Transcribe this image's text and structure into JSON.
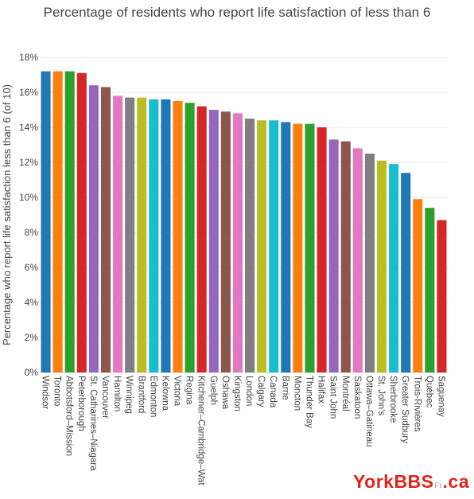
{
  "chart_data": {
    "type": "bar",
    "title": "Percentage of residents who report life satisfaction of less than 6",
    "ylabel": "Percentage who report life satisfaction less than 6 (of 10)",
    "xlabel": "",
    "ylim": [
      0,
      18
    ],
    "yticks": [
      "0%",
      "2%",
      "4%",
      "6%",
      "8%",
      "10%",
      "12%",
      "14%",
      "16%",
      "18%"
    ],
    "grid": true,
    "categories": [
      "Windsor",
      "Toronto",
      "Abbotsford–Mission",
      "Peterborough",
      "St. Catharines–Niagara",
      "Vancouver",
      "Hamilton",
      "Winnipeg",
      "Brantford",
      "Edmonton",
      "Kelowna",
      "Victoria",
      "Regina",
      "Kitchener–Cambridge–Wat",
      "Guelph",
      "Oshawa",
      "Kingston",
      "London",
      "Calgary",
      "Canada",
      "Barrie",
      "Moncton",
      "Thunder Bay",
      "Halifax",
      "Saint John",
      "Montréal",
      "Saskatoon",
      "Ottawa–Gatineau",
      "St. John's",
      "Sherbrooke",
      "Greater Sudbury",
      "Trois-Rivières",
      "Québec",
      "Saguenay"
    ],
    "values": [
      17.2,
      17.2,
      17.2,
      17.1,
      16.4,
      16.3,
      15.8,
      15.7,
      15.7,
      15.6,
      15.6,
      15.5,
      15.4,
      15.2,
      15.0,
      14.9,
      14.8,
      14.5,
      14.4,
      14.4,
      14.3,
      14.2,
      14.2,
      14.0,
      13.3,
      13.2,
      12.8,
      12.5,
      12.1,
      11.9,
      11.4,
      9.9,
      9.4,
      8.7
    ],
    "colors": [
      "#1f77b4",
      "#ff7f0e",
      "#2ca02c",
      "#d62728",
      "#9467bd",
      "#8c564b",
      "#e377c2",
      "#7f7f7f",
      "#bcbd22",
      "#17becf"
    ]
  },
  "watermark": {
    "brand": "YorkBBS",
    "mid": "Ft",
    "tld": ".ca"
  }
}
